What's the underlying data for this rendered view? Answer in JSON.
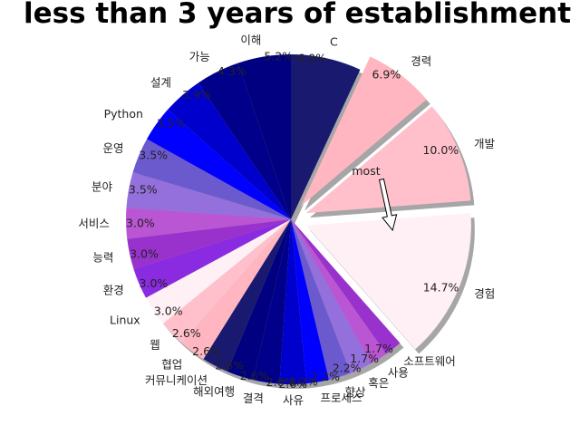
{
  "chart_data": {
    "type": "pie",
    "title": "less than 3 years of establishment",
    "shadow": true,
    "start_angle_deg": 90,
    "direction": "clockwise",
    "slices": [
      {
        "label": "C",
        "pct_label": "6.9%",
        "value": 6.9,
        "color": "#191970",
        "explode": false
      },
      {
        "label": "경력",
        "pct_label": "6.9%",
        "value": 6.9,
        "color": "#FFB6C1",
        "explode": true
      },
      {
        "label": "개발",
        "pct_label": "10.0%",
        "value": 10.0,
        "color": "#FFC0CB",
        "explode": true
      },
      {
        "label": "경험",
        "pct_label": "14.7%",
        "value": 14.7,
        "color": "#FFF0F5",
        "explode": true
      },
      {
        "label": "소프트웨어",
        "pct_label": "1.7%",
        "value": 1.7,
        "color": "#9932CC",
        "explode": false
      },
      {
        "label": "사용",
        "pct_label": "1.7%",
        "value": 1.7,
        "color": "#BA55D3",
        "explode": false
      },
      {
        "label": "혹은",
        "pct_label": "2.2%",
        "value": 2.2,
        "color": "#9370DB",
        "explode": false
      },
      {
        "label": "향상",
        "pct_label": "2.2%",
        "value": 2.2,
        "color": "#6A5ACD",
        "explode": false
      },
      {
        "label": "프로세스",
        "pct_label": "2.2%",
        "value": 2.2,
        "color": "#0000FF",
        "explode": false
      },
      {
        "label": "사유",
        "pct_label": "2.6%",
        "value": 2.6,
        "color": "#0000CD",
        "explode": false
      },
      {
        "label": "결격",
        "pct_label": "2.6%",
        "value": 2.6,
        "color": "#00008B",
        "explode": false
      },
      {
        "label": "해외여행",
        "pct_label": "2.6%",
        "value": 2.6,
        "color": "#000080",
        "explode": false
      },
      {
        "label": "커뮤니케이션",
        "pct_label": "2.6%",
        "value": 2.6,
        "color": "#191970",
        "explode": false
      },
      {
        "label": "협업",
        "pct_label": "2.6%",
        "value": 2.6,
        "color": "#FFB6C1",
        "explode": false
      },
      {
        "label": "웹",
        "pct_label": "2.6%",
        "value": 2.6,
        "color": "#FFC0CB",
        "explode": false
      },
      {
        "label": "Linux",
        "pct_label": "3.0%",
        "value": 3.0,
        "color": "#FFF0F5",
        "explode": false
      },
      {
        "label": "환경",
        "pct_label": "3.0%",
        "value": 3.0,
        "color": "#8A2BE2",
        "explode": false
      },
      {
        "label": "능력",
        "pct_label": "3.0%",
        "value": 3.0,
        "color": "#9932CC",
        "explode": false
      },
      {
        "label": "서비스",
        "pct_label": "3.0%",
        "value": 3.0,
        "color": "#BA55D3",
        "explode": false
      },
      {
        "label": "분야",
        "pct_label": "3.5%",
        "value": 3.5,
        "color": "#9370DB",
        "explode": false
      },
      {
        "label": "운영",
        "pct_label": "3.5%",
        "value": 3.5,
        "color": "#6A5ACD",
        "explode": false
      },
      {
        "label": "Python",
        "pct_label": "3.5%",
        "value": 3.5,
        "color": "#0000FF",
        "explode": false
      },
      {
        "label": "설계",
        "pct_label": "3.9%",
        "value": 3.9,
        "color": "#0000CD",
        "explode": false
      },
      {
        "label": "가능",
        "pct_label": "4.3%",
        "value": 4.3,
        "color": "#00008B",
        "explode": false
      },
      {
        "label": "이해",
        "pct_label": "5.2%",
        "value": 5.2,
        "color": "#000080",
        "explode": false
      }
    ],
    "annotations": [
      {
        "text": "most",
        "target_slice": "경험",
        "arrow": true
      }
    ]
  }
}
